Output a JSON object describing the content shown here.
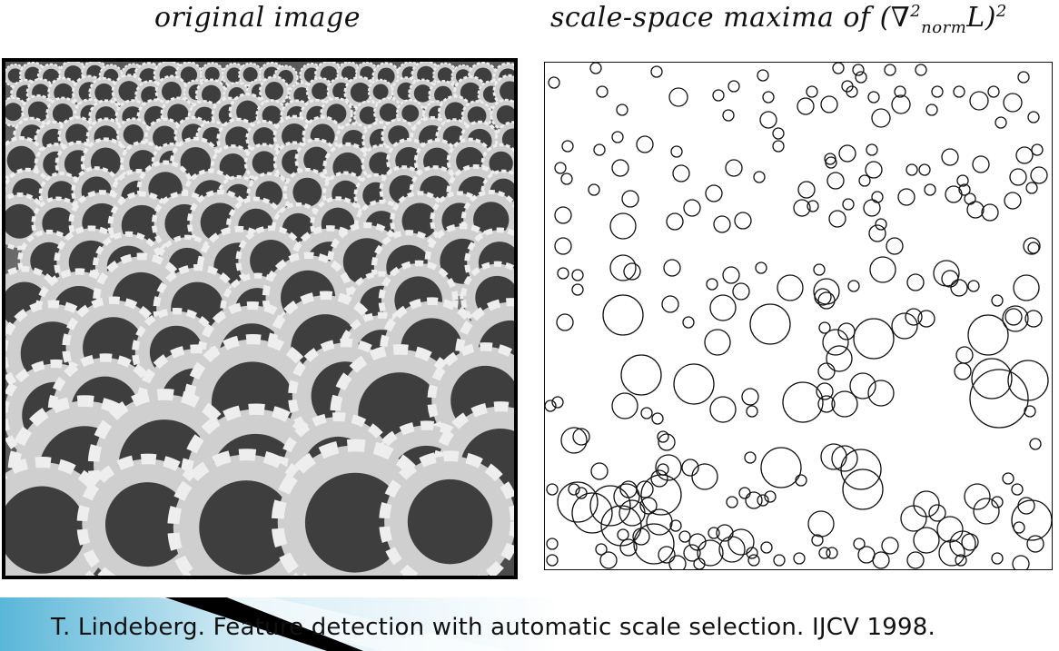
{
  "left_panel": {
    "title": "original image"
  },
  "right_panel": {
    "title_prefix": "scale-space maxima of (∇",
    "title_sup": "2",
    "title_sub": "norm",
    "title_middle": "L)",
    "title_power": "2"
  },
  "footer": {
    "citation": "T. Lindeberg.  Feature detection with automatic scale selection.  IJCV 1998."
  },
  "colors": {
    "footer_band": "#5ab6d8",
    "footer_band_light": "#d9eef6",
    "footer_wedge": "#000000",
    "circle_stroke": "#111111"
  }
}
